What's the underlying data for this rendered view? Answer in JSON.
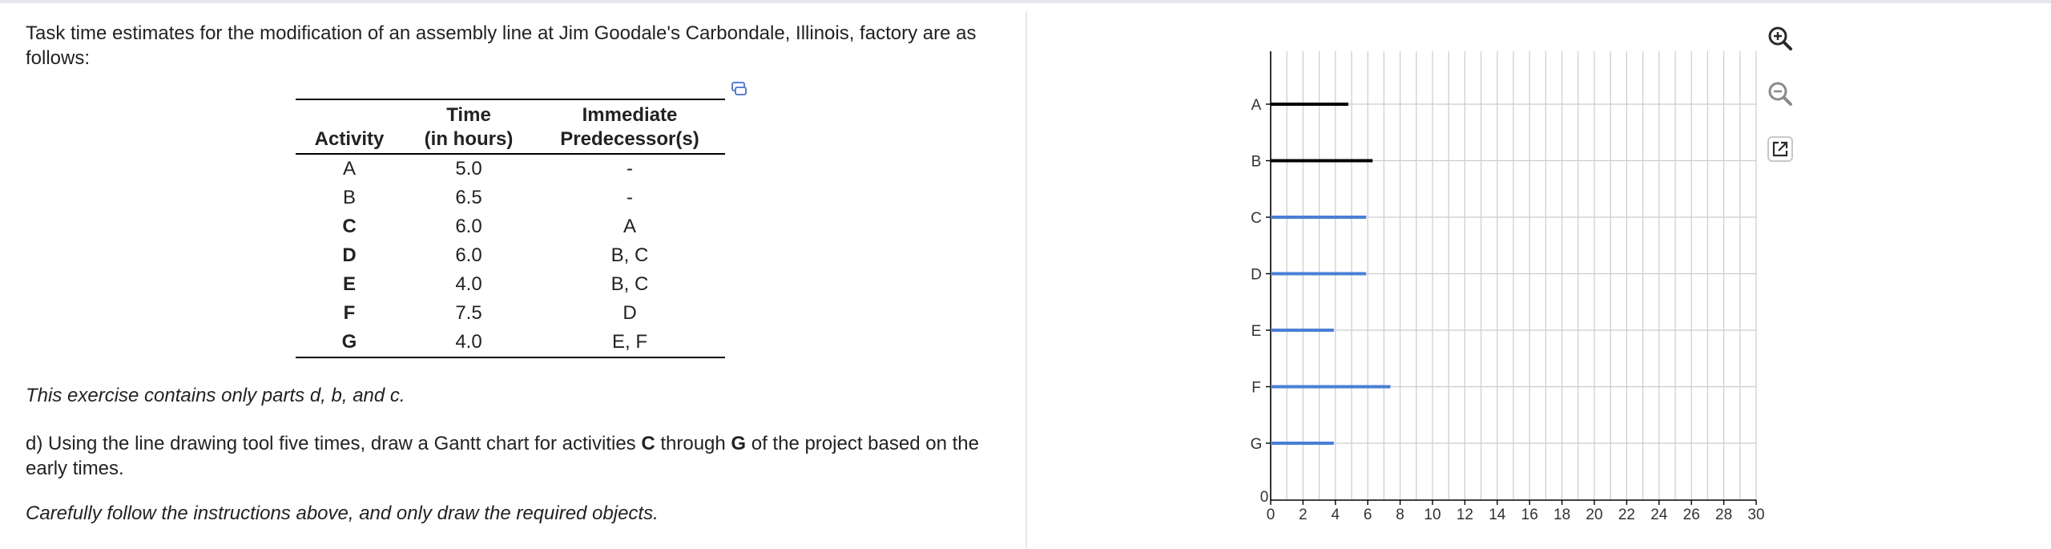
{
  "question": {
    "intro": "Task time estimates for the modification of an assembly line at Jim Goodale's Carbondale, Illinois, factory are as follows:",
    "note": "This exercise contains only parts d, b, and c.",
    "partd_prefix": "d) Using the line drawing tool five times, draw a Gantt chart for activities ",
    "partd_c": "C",
    "partd_mid": " through ",
    "partd_g": "G",
    "partd_suffix": " of the project based on the early times.",
    "careful": "Carefully follow the instructions above, and only draw the required objects."
  },
  "table": {
    "headers": {
      "activity": "Activity",
      "time_line1": "Time",
      "time_line2": "(in hours)",
      "pred_line1": "Immediate",
      "pred_line2": "Predecessor(s)"
    },
    "rows": [
      {
        "activity": "A",
        "time": "5.0",
        "pred": "-"
      },
      {
        "activity": "B",
        "time": "6.5",
        "pred": "-"
      },
      {
        "activity": "C",
        "time": "6.0",
        "pred": "A"
      },
      {
        "activity": "D",
        "time": "6.0",
        "pred": "B, C"
      },
      {
        "activity": "E",
        "time": "4.0",
        "pred": "B, C"
      },
      {
        "activity": "F",
        "time": "7.5",
        "pred": "D"
      },
      {
        "activity": "G",
        "time": "4.0",
        "pred": "E, F"
      }
    ]
  },
  "icons": {
    "copy": "copy-table-icon",
    "zoom_in": "zoom-in-icon",
    "zoom_out": "zoom-out-icon",
    "popout": "popout-icon"
  },
  "colors": {
    "given_bar": "#000000",
    "drawn_bar": "#4a7fd4",
    "grid": "#cccccc",
    "icon": "#2a2a2a",
    "copy_icon": "#5b7fcf"
  },
  "chart_data": {
    "type": "gantt",
    "xlim": [
      0,
      30
    ],
    "x_ticks": [
      0,
      2,
      4,
      6,
      8,
      10,
      12,
      14,
      16,
      18,
      20,
      22,
      24,
      26,
      28,
      30
    ],
    "y_zero_label": "0",
    "categories": [
      "A",
      "B",
      "C",
      "D",
      "E",
      "F",
      "G"
    ],
    "bars": [
      {
        "label": "A",
        "start": 0,
        "end": 4.8,
        "color": "#000000"
      },
      {
        "label": "B",
        "start": 0,
        "end": 6.3,
        "color": "#000000"
      },
      {
        "label": "C",
        "start": 0,
        "end": 5.9,
        "color": "#4a7fd4"
      },
      {
        "label": "D",
        "start": 0,
        "end": 5.9,
        "color": "#4a7fd4"
      },
      {
        "label": "E",
        "start": 0,
        "end": 3.9,
        "color": "#4a7fd4"
      },
      {
        "label": "F",
        "start": 0,
        "end": 7.4,
        "color": "#4a7fd4"
      },
      {
        "label": "G",
        "start": 0,
        "end": 3.9,
        "color": "#4a7fd4"
      }
    ],
    "grid": true
  }
}
